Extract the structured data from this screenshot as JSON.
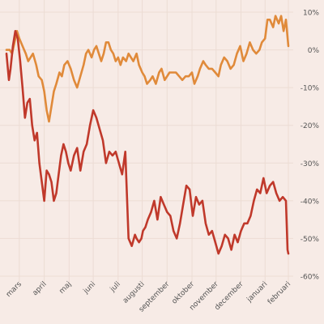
{
  "chart_data": {
    "type": "line",
    "title": "",
    "xlabel": "",
    "ylabel": "",
    "ylim": [
      -60,
      10
    ],
    "y_ticks": [
      10,
      0,
      -10,
      -20,
      -30,
      -40,
      -50,
      -60
    ],
    "y_tick_suffix": "%",
    "y_axis_position": "right",
    "grid": true,
    "legend": "none",
    "x_range": [
      0,
      351
    ],
    "x_ticks": [
      {
        "label": "mars",
        "x": 16
      },
      {
        "label": "april",
        "x": 47
      },
      {
        "label": "maj",
        "x": 78
      },
      {
        "label": "juni",
        "x": 108
      },
      {
        "label": "juli",
        "x": 139
      },
      {
        "label": "augusti",
        "x": 169
      },
      {
        "label": "september",
        "x": 200
      },
      {
        "label": "oktober",
        "x": 231
      },
      {
        "label": "november",
        "x": 261
      },
      {
        "label": "december",
        "x": 292
      },
      {
        "label": "januari",
        "x": 322
      },
      {
        "label": "februari",
        "x": 351
      }
    ],
    "series": [
      {
        "color": "#e08a3a",
        "x": [
          0,
          4,
          7,
          10,
          13,
          16,
          20,
          24,
          27,
          30,
          33,
          37,
          40,
          44,
          47,
          50,
          53,
          56,
          59,
          62,
          66,
          69,
          72,
          76,
          80,
          84,
          88,
          92,
          96,
          99,
          102,
          106,
          109,
          112,
          115,
          118,
          121,
          124,
          127,
          130,
          133,
          136,
          139,
          142,
          145,
          149,
          152,
          155,
          158,
          162,
          165,
          169,
          172,
          175,
          179,
          182,
          186,
          190,
          193,
          197,
          200,
          203,
          207,
          211,
          215,
          219,
          223,
          227,
          231,
          234,
          238,
          241,
          245,
          248,
          252,
          256,
          260,
          264,
          267,
          271,
          275,
          279,
          283,
          287,
          291,
          295,
          299,
          303,
          307,
          311,
          315,
          318,
          322,
          325,
          328,
          332,
          335,
          339,
          342,
          345,
          348,
          351
        ],
        "y": [
          0,
          0,
          -1,
          2,
          5,
          3,
          1,
          -1,
          -3,
          -2,
          -1,
          -4,
          -7,
          -8,
          -11,
          -16,
          -19,
          -15,
          -11,
          -9,
          -6,
          -7,
          -4,
          -3,
          -5,
          -8,
          -10,
          -7,
          -4,
          -1,
          0,
          -2,
          0,
          1,
          -1,
          -3,
          -1,
          2,
          2,
          0,
          -1,
          -3,
          -2,
          -4,
          -2,
          -3,
          -1,
          -2,
          -3,
          -1,
          -4,
          -6,
          -7,
          -9,
          -8,
          -7,
          -9,
          -6,
          -5,
          -8,
          -7,
          -6,
          -6,
          -6,
          -7,
          -8,
          -7,
          -7,
          -6,
          -9,
          -7,
          -5,
          -3,
          -4,
          -5,
          -5,
          -6,
          -7,
          -4,
          -2,
          -3,
          -5,
          -4,
          -1,
          1,
          -3,
          -1,
          2,
          0,
          -1,
          0,
          2,
          3,
          8,
          8,
          6,
          9,
          7,
          9,
          5,
          8,
          1
        ]
      },
      {
        "color": "#c0392b",
        "x": [
          0,
          3,
          5,
          8,
          11,
          14,
          17,
          20,
          23,
          26,
          29,
          32,
          35,
          38,
          41,
          44,
          47,
          50,
          53,
          56,
          59,
          62,
          65,
          68,
          71,
          74,
          77,
          80,
          84,
          88,
          92,
          96,
          100,
          104,
          108,
          112,
          116,
          120,
          124,
          128,
          132,
          136,
          140,
          144,
          148,
          152,
          156,
          160,
          162,
          165,
          168,
          170,
          173,
          176,
          180,
          184,
          188,
          192,
          196,
          200,
          204,
          208,
          212,
          216,
          220,
          224,
          228,
          232,
          236,
          240,
          244,
          248,
          252,
          256,
          260,
          264,
          268,
          272,
          276,
          280,
          284,
          288,
          292,
          296,
          300,
          304,
          308,
          312,
          316,
          320,
          324,
          328,
          332,
          336,
          340,
          344,
          348,
          350,
          351
        ],
        "y": [
          -1,
          -8,
          -5,
          1,
          5,
          3,
          -3,
          -10,
          -18,
          -14,
          -13,
          -20,
          -24,
          -22,
          -30,
          -35,
          -40,
          -32,
          -33,
          -35,
          -40,
          -38,
          -33,
          -28,
          -25,
          -27,
          -30,
          -32,
          -28,
          -26,
          -32,
          -27,
          -25,
          -20,
          -16,
          -18,
          -21,
          -24,
          -30,
          -27,
          -28,
          -27,
          -30,
          -33,
          -27,
          -50,
          -52,
          -49,
          -50,
          -51,
          -50,
          -48,
          -47,
          -45,
          -43,
          -40,
          -45,
          -39,
          -41,
          -43,
          -44,
          -48,
          -50,
          -46,
          -41,
          -36,
          -37,
          -44,
          -39,
          -41,
          -40,
          -46,
          -49,
          -48,
          -51,
          -54,
          -52,
          -49,
          -50,
          -53,
          -49,
          -51,
          -48,
          -46,
          -46,
          -44,
          -40,
          -37,
          -38,
          -34,
          -38,
          -36,
          -35,
          -38,
          -40,
          -39,
          -40,
          -53,
          -54
        ]
      }
    ]
  }
}
